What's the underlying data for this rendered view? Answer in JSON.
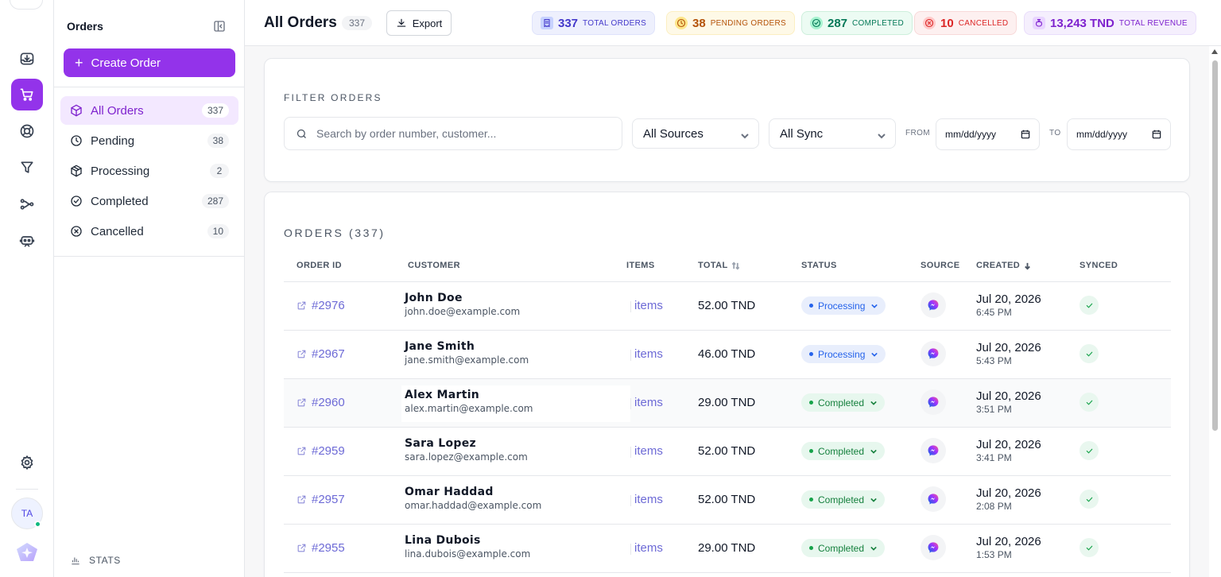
{
  "sidebar": {
    "title": "Orders",
    "create_label": "Create Order",
    "items": [
      {
        "label": "All Orders",
        "count": "337",
        "icon": "box-icon",
        "active": true
      },
      {
        "label": "Pending",
        "count": "38",
        "icon": "clock-icon"
      },
      {
        "label": "Processing",
        "count": "2",
        "icon": "package-icon"
      },
      {
        "label": "Completed",
        "count": "287",
        "icon": "check-circle-icon"
      },
      {
        "label": "Cancelled",
        "count": "10",
        "icon": "x-circle-icon"
      }
    ],
    "stats_label": "STATS"
  },
  "rail": {
    "avatar_initials": "TA",
    "icons": [
      "inbox-download-icon",
      "cart-icon",
      "lifebuoy-icon",
      "filter-icon",
      "flow-icon",
      "bot-icon",
      "gear-icon"
    ]
  },
  "header": {
    "title": "All Orders",
    "count": "337",
    "export_label": "Export",
    "kpis": [
      {
        "value": "337",
        "label": "TOTAL ORDERS",
        "color": "#4338ca"
      },
      {
        "value": "38",
        "label": "PENDING ORDERS",
        "color": "#b45309"
      },
      {
        "value": "287",
        "label": "COMPLETED",
        "color": "#047857"
      },
      {
        "value": "10",
        "label": "CANCELLED",
        "color": "#dc2626"
      },
      {
        "value": "13,243 TND",
        "label": "TOTAL REVENUE",
        "color": "#7e22ce"
      }
    ]
  },
  "filters": {
    "heading": "FILTER ORDERS",
    "search_placeholder": "Search by order number, customer...",
    "source_value": "All Sources",
    "sync_value": "All Sync",
    "from_label": "FROM",
    "to_label": "TO",
    "from_value": "mm/dd/yyyy",
    "to_value": "mm/dd/yyyy"
  },
  "orders": {
    "heading": "ORDERS (337)",
    "columns": [
      "ORDER ID",
      "CUSTOMER",
      "ITEMS",
      "TOTAL",
      "STATUS",
      "SOURCE",
      "CREATED",
      "SYNCED"
    ],
    "rows": [
      {
        "id": "#2976",
        "name": "John Doe",
        "email": "john.doe@example.com",
        "items": "items",
        "total": "52.00 TND",
        "status": "Processing",
        "date": "Jul 20, 2026",
        "time": "6:45 PM"
      },
      {
        "id": "#2967",
        "name": "Jane Smith",
        "email": "jane.smith@example.com",
        "items": "items",
        "total": "46.00 TND",
        "status": "Processing",
        "date": "Jul 20, 2026",
        "time": "5:43 PM"
      },
      {
        "id": "#2960",
        "name": "Alex Martin",
        "email": "alex.martin@example.com",
        "items": "items",
        "total": "29.00 TND",
        "status": "Completed",
        "date": "Jul 20, 2026",
        "time": "3:51 PM"
      },
      {
        "id": "#2959",
        "name": "Sara Lopez",
        "email": "sara.lopez@example.com",
        "items": "items",
        "total": "52.00 TND",
        "status": "Completed",
        "date": "Jul 20, 2026",
        "time": "3:41 PM"
      },
      {
        "id": "#2957",
        "name": "Omar Haddad",
        "email": "omar.haddad@example.com",
        "items": "items",
        "total": "52.00 TND",
        "status": "Completed",
        "date": "Jul 20, 2026",
        "time": "2:08 PM"
      },
      {
        "id": "#2955",
        "name": "Lina Dubois",
        "email": "lina.dubois@example.com",
        "items": "items",
        "total": "29.00 TND",
        "status": "Completed",
        "date": "Jul 20, 2026",
        "time": "1:53 PM"
      }
    ]
  }
}
